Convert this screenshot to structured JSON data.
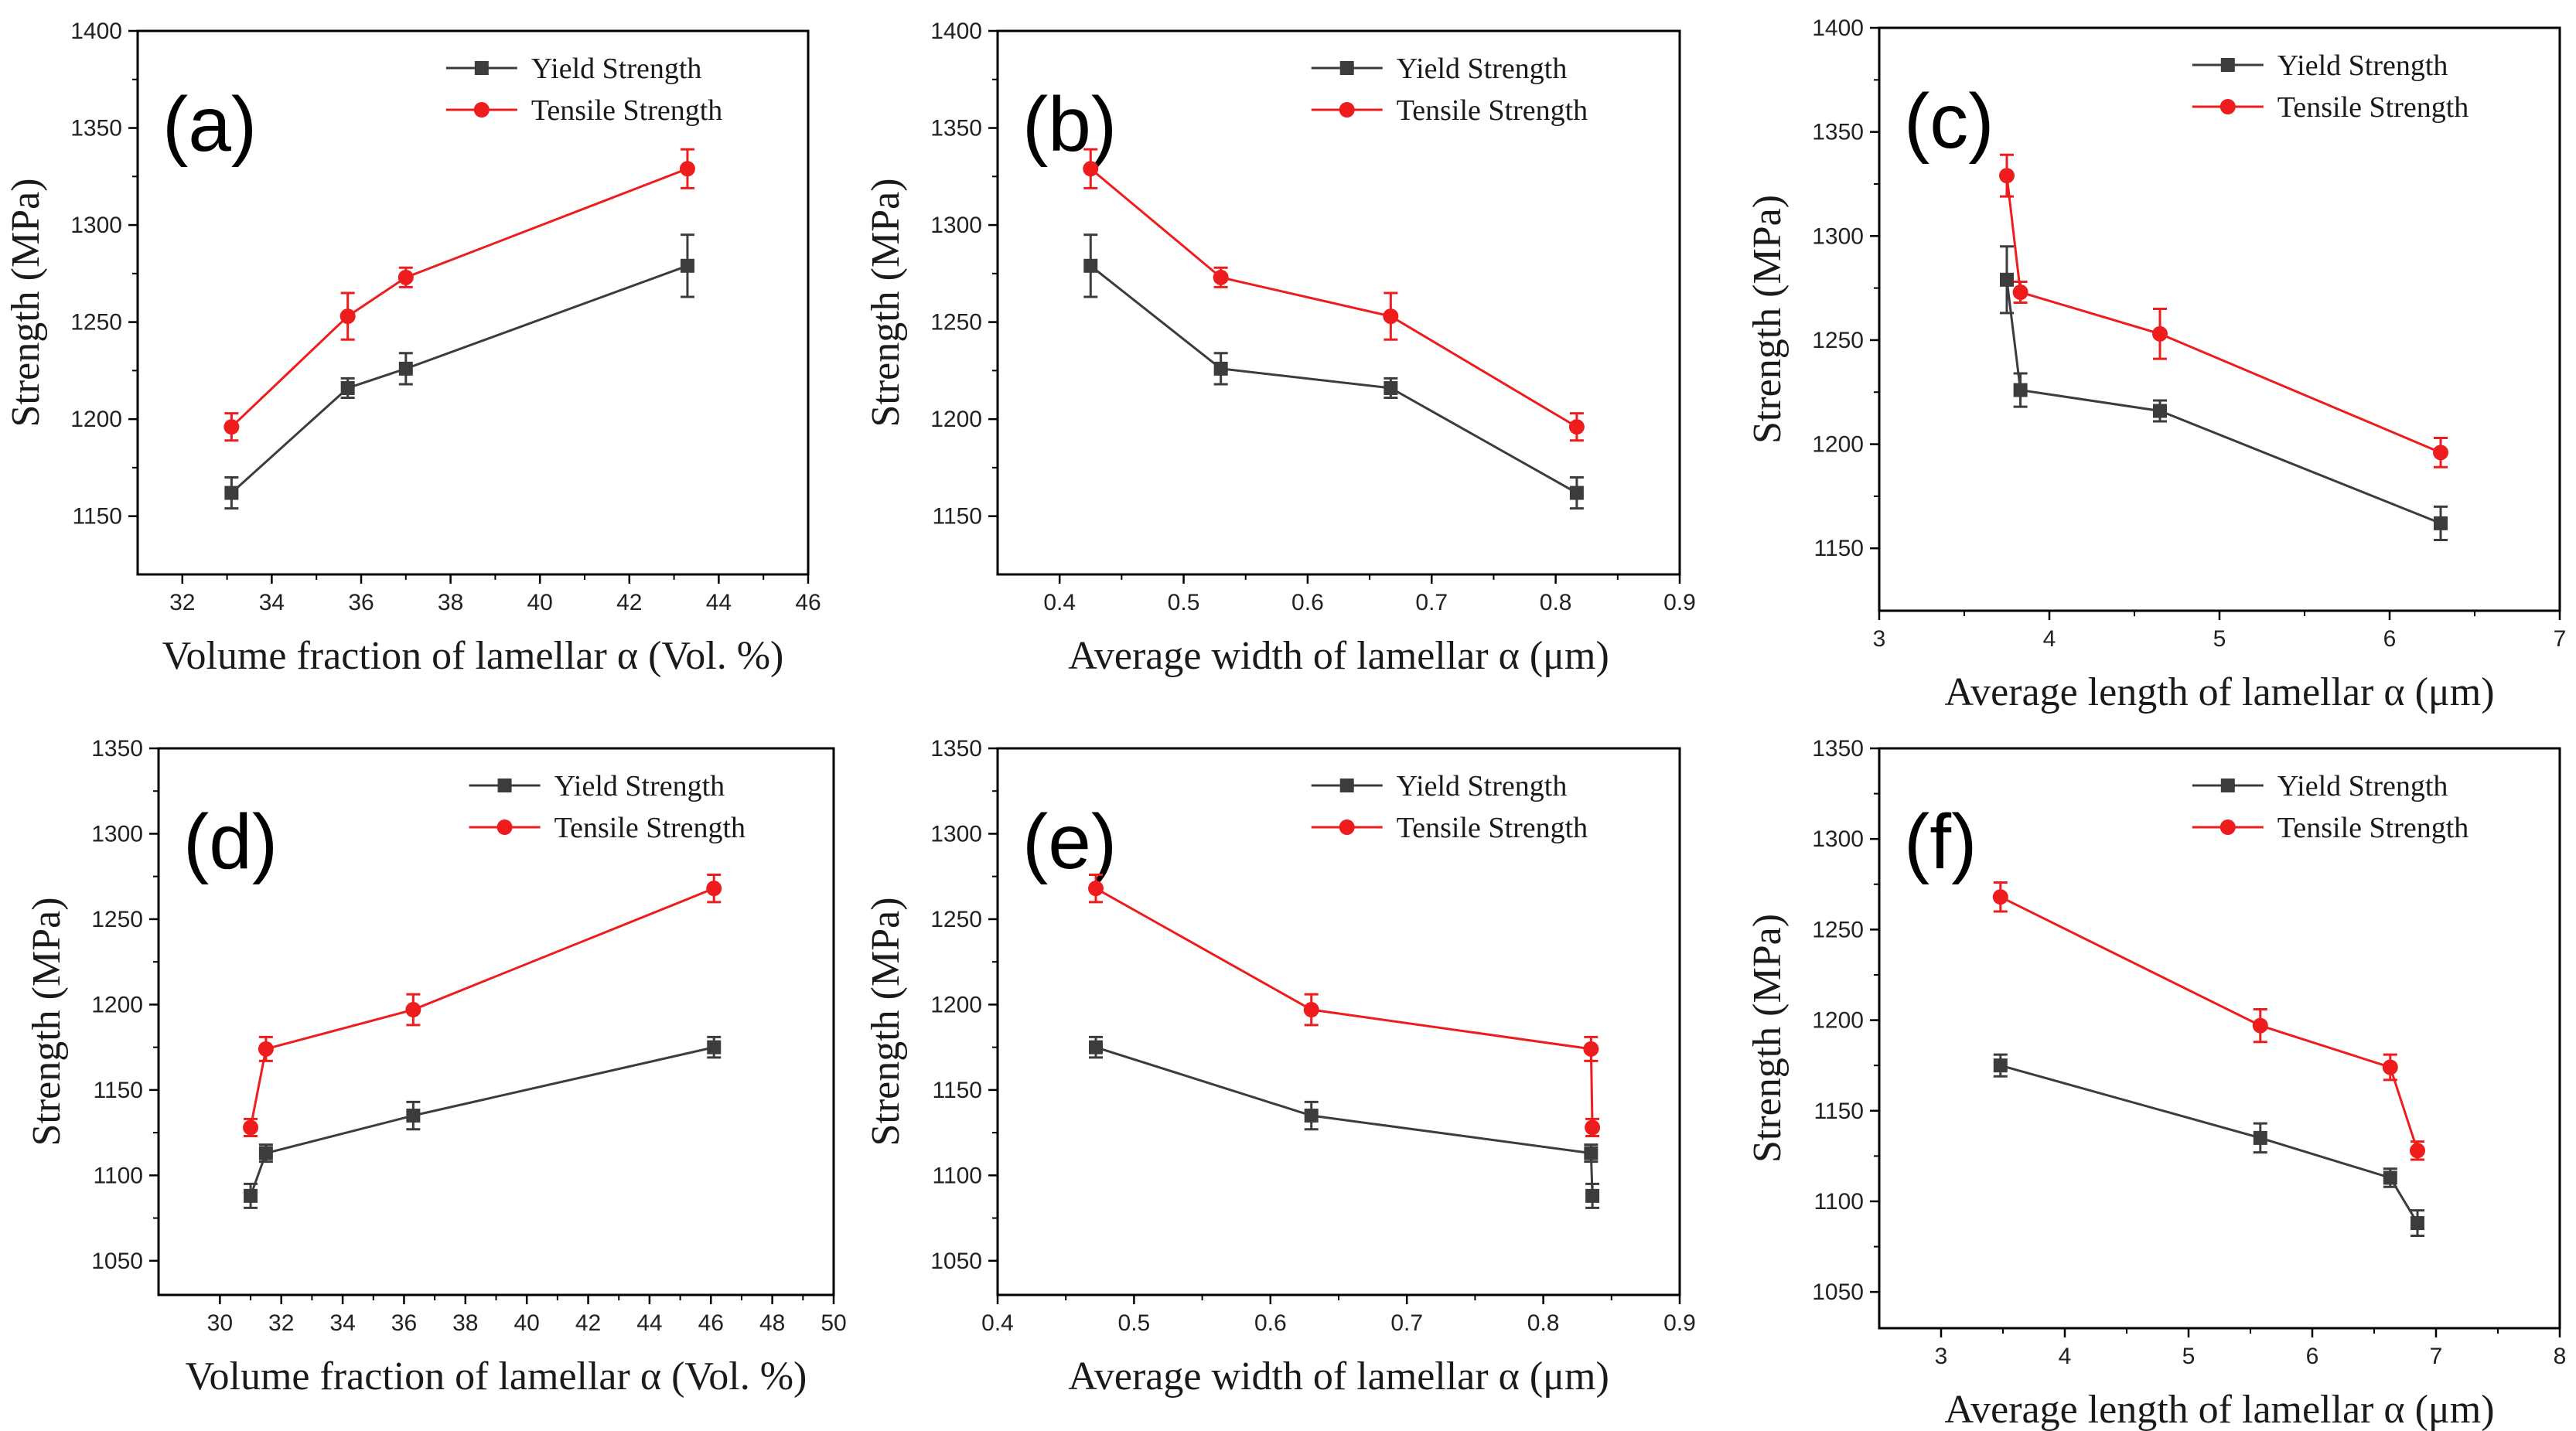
{
  "colors": {
    "yield": "#3c3c3c",
    "tensile": "#ee1c1c",
    "axis": "#000000"
  },
  "chart_data": [
    {
      "type": "line",
      "panel": "(a)",
      "xlabel": "Volume fraction of lamellar α (Vol. %)",
      "ylabel": "Strength (MPa)",
      "xlim": [
        31,
        46
      ],
      "ylim": [
        1120,
        1400
      ],
      "xticks": [
        32,
        34,
        36,
        38,
        40,
        42,
        44,
        46
      ],
      "yticks": [
        1150,
        1200,
        1250,
        1300,
        1350,
        1400
      ],
      "legend": "top-right",
      "series": [
        {
          "name": "Yield Strength",
          "marker": "square",
          "x": [
            33.1,
            35.7,
            37.0,
            43.3
          ],
          "y": [
            1162,
            1216,
            1226,
            1279
          ],
          "err": [
            8,
            5,
            8,
            16
          ]
        },
        {
          "name": "Tensile Strength",
          "marker": "circle",
          "x": [
            33.1,
            35.7,
            37.0,
            43.3
          ],
          "y": [
            1196,
            1253,
            1273,
            1329
          ],
          "err": [
            7,
            12,
            5,
            10
          ]
        }
      ]
    },
    {
      "type": "line",
      "panel": "(b)",
      "xlabel": "Average width of lamellar α (μm)",
      "ylabel": "Strength (MPa)",
      "xlim": [
        0.35,
        0.9
      ],
      "ylim": [
        1120,
        1400
      ],
      "xticks": [
        0.4,
        0.5,
        0.6,
        0.7,
        0.8,
        0.9
      ],
      "yticks": [
        1150,
        1200,
        1250,
        1300,
        1350,
        1400
      ],
      "legend": "top-right",
      "series": [
        {
          "name": "Yield Strength",
          "marker": "square",
          "x": [
            0.425,
            0.53,
            0.667,
            0.817
          ],
          "y": [
            1279,
            1226,
            1216,
            1162
          ],
          "err": [
            16,
            8,
            5,
            8
          ]
        },
        {
          "name": "Tensile Strength",
          "marker": "circle",
          "x": [
            0.425,
            0.53,
            0.667,
            0.817
          ],
          "y": [
            1329,
            1273,
            1253,
            1196
          ],
          "err": [
            10,
            5,
            12,
            7
          ]
        }
      ]
    },
    {
      "type": "line",
      "panel": "(c)",
      "xlabel": "Average length of lamellar α (μm)",
      "ylabel": "Strength (MPa)",
      "xlim": [
        3,
        7
      ],
      "ylim": [
        1120,
        1400
      ],
      "xticks": [
        3,
        4,
        5,
        6,
        7
      ],
      "yticks": [
        1150,
        1200,
        1250,
        1300,
        1350,
        1400
      ],
      "legend": "top-right",
      "series": [
        {
          "name": "Yield Strength",
          "marker": "square",
          "x": [
            3.75,
            3.83,
            4.65,
            6.3
          ],
          "y": [
            1279,
            1226,
            1216,
            1162
          ],
          "err": [
            16,
            8,
            5,
            8
          ]
        },
        {
          "name": "Tensile Strength",
          "marker": "circle",
          "x": [
            3.75,
            3.83,
            4.65,
            6.3
          ],
          "y": [
            1329,
            1273,
            1253,
            1196
          ],
          "err": [
            10,
            5,
            12,
            7
          ]
        }
      ]
    },
    {
      "type": "line",
      "panel": "(d)",
      "xlabel": "Volume fraction of lamellar α (Vol. %)",
      "ylabel": "Strength (MPa)",
      "xlim": [
        28,
        50
      ],
      "ylim": [
        1030,
        1350
      ],
      "xticks": [
        30,
        32,
        34,
        36,
        38,
        40,
        42,
        44,
        46,
        48,
        50
      ],
      "yticks": [
        1050,
        1100,
        1150,
        1200,
        1250,
        1300,
        1350
      ],
      "legend": "top-right",
      "series": [
        {
          "name": "Yield Strength",
          "marker": "square",
          "x": [
            31.0,
            31.5,
            36.3,
            46.1
          ],
          "y": [
            1088,
            1113,
            1135,
            1175
          ],
          "err": [
            7,
            5,
            8,
            6
          ]
        },
        {
          "name": "Tensile Strength",
          "marker": "circle",
          "x": [
            31.0,
            31.5,
            36.3,
            46.1
          ],
          "y": [
            1128,
            1174,
            1197,
            1268
          ],
          "err": [
            5,
            7,
            9,
            8
          ]
        }
      ]
    },
    {
      "type": "line",
      "panel": "(e)",
      "xlabel": "Average width of lamellar α (μm)",
      "ylabel": "Strength (MPa)",
      "xlim": [
        0.4,
        0.9
      ],
      "ylim": [
        1030,
        1350
      ],
      "xticks": [
        0.4,
        0.5,
        0.6,
        0.7,
        0.8,
        0.9
      ],
      "yticks": [
        1050,
        1100,
        1150,
        1200,
        1250,
        1300,
        1350
      ],
      "legend": "top-right",
      "series": [
        {
          "name": "Yield Strength",
          "marker": "square",
          "x": [
            0.472,
            0.63,
            0.835,
            0.836
          ],
          "y": [
            1175,
            1135,
            1113,
            1088
          ],
          "err": [
            6,
            8,
            5,
            7
          ]
        },
        {
          "name": "Tensile Strength",
          "marker": "circle",
          "x": [
            0.472,
            0.63,
            0.835,
            0.836
          ],
          "y": [
            1268,
            1197,
            1174,
            1128
          ],
          "err": [
            8,
            9,
            7,
            5
          ]
        }
      ]
    },
    {
      "type": "line",
      "panel": "(f)",
      "xlabel": "Average length of lamellar α (μm)",
      "ylabel": "Strength (MPa)",
      "xlim": [
        2.5,
        8
      ],
      "ylim": [
        1030,
        1350
      ],
      "xticks": [
        3,
        4,
        5,
        6,
        7,
        8
      ],
      "yticks": [
        1050,
        1100,
        1150,
        1200,
        1250,
        1300,
        1350
      ],
      "legend": "top-right",
      "series": [
        {
          "name": "Yield Strength",
          "marker": "square",
          "x": [
            3.48,
            5.58,
            6.63,
            6.85
          ],
          "y": [
            1175,
            1135,
            1113,
            1088
          ],
          "err": [
            6,
            8,
            5,
            7
          ]
        },
        {
          "name": "Tensile Strength",
          "marker": "circle",
          "x": [
            3.48,
            5.58,
            6.63,
            6.85
          ],
          "y": [
            1268,
            1197,
            1174,
            1128
          ],
          "err": [
            8,
            9,
            7,
            5
          ]
        }
      ]
    }
  ]
}
